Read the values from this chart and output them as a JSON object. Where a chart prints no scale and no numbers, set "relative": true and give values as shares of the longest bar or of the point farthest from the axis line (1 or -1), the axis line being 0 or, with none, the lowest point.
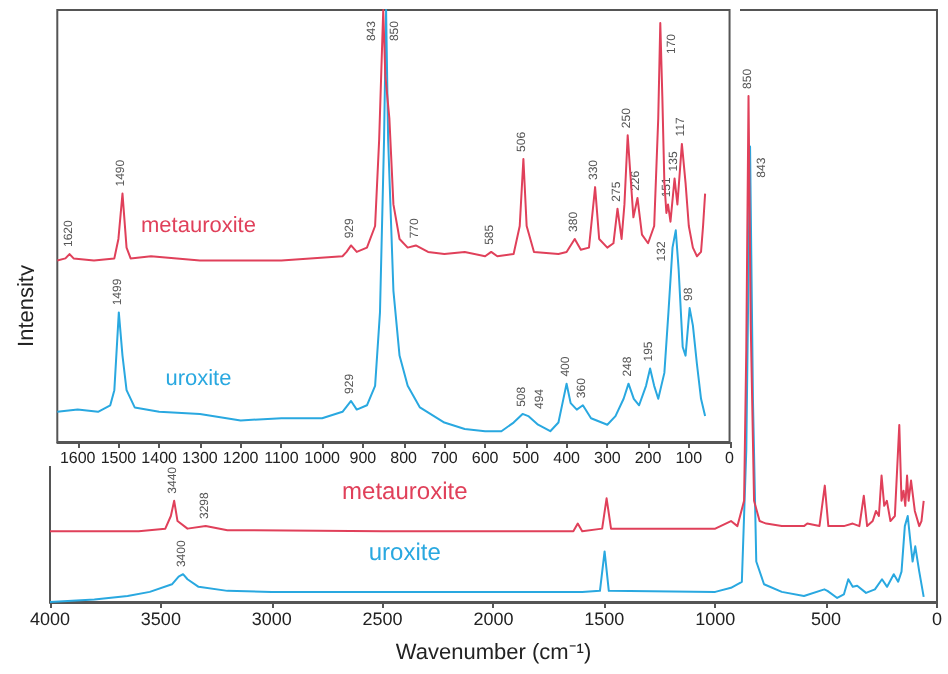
{
  "chart_data": [
    {
      "type": "line",
      "xlabel": "Wavenumber (cm⁻¹)",
      "ylabel": "Intensity",
      "relative": true,
      "tick_labels": "x",
      "xlim": [
        4000,
        0
      ],
      "xticks": [
        4000,
        3500,
        3000,
        2500,
        2000,
        1500,
        1000,
        500,
        0
      ],
      "series": [
        {
          "name": "metauroxite",
          "color": "#e0405a",
          "x": [
            4000,
            3600,
            3480,
            3455,
            3440,
            3425,
            3380,
            3298,
            3200,
            2500,
            2000,
            1640,
            1620,
            1600,
            1510,
            1490,
            1470,
            1000,
            929,
            900,
            870,
            860,
            850,
            840,
            825,
            800,
            770,
            700,
            600,
            585,
            530,
            506,
            490,
            420,
            380,
            350,
            330,
            315,
            290,
            275,
            262,
            250,
            238,
            226,
            210,
            190,
            170,
            160,
            151,
            143,
            135,
            128,
            117,
            100,
            80,
            70,
            60
          ],
          "values": [
            0.14,
            0.14,
            0.145,
            0.17,
            0.2,
            0.16,
            0.145,
            0.15,
            0.142,
            0.14,
            0.14,
            0.14,
            0.155,
            0.14,
            0.145,
            0.205,
            0.145,
            0.145,
            0.16,
            0.15,
            0.2,
            0.5,
            1.0,
            0.55,
            0.2,
            0.16,
            0.155,
            0.15,
            0.15,
            0.155,
            0.15,
            0.23,
            0.15,
            0.15,
            0.155,
            0.15,
            0.21,
            0.15,
            0.16,
            0.18,
            0.17,
            0.25,
            0.19,
            0.2,
            0.16,
            0.17,
            0.35,
            0.2,
            0.22,
            0.19,
            0.25,
            0.2,
            0.24,
            0.18,
            0.15,
            0.16,
            0.2
          ]
        },
        {
          "name": "uroxite",
          "color": "#29a8e0",
          "x": [
            4000,
            3800,
            3650,
            3550,
            3450,
            3420,
            3400,
            3380,
            3330,
            3200,
            3000,
            2500,
            2000,
            1600,
            1520,
            1499,
            1480,
            1000,
            929,
            880,
            860,
            843,
            830,
            815,
            780,
            700,
            600,
            508,
            494,
            450,
            420,
            400,
            380,
            360,
            320,
            280,
            248,
            225,
            195,
            175,
            160,
            145,
            132,
            120,
            110,
            98,
            80,
            60
          ],
          "values": [
            0.0,
            0.005,
            0.012,
            0.02,
            0.035,
            0.05,
            0.055,
            0.045,
            0.03,
            0.022,
            0.02,
            0.02,
            0.02,
            0.02,
            0.022,
            0.1,
            0.022,
            0.02,
            0.028,
            0.04,
            0.3,
            0.9,
            0.4,
            0.08,
            0.035,
            0.02,
            0.012,
            0.025,
            0.022,
            0.008,
            0.015,
            0.045,
            0.03,
            0.032,
            0.018,
            0.025,
            0.045,
            0.03,
            0.055,
            0.04,
            0.06,
            0.15,
            0.17,
            0.12,
            0.08,
            0.11,
            0.06,
            0.01
          ]
        }
      ],
      "annotations": [
        {
          "text": "3440",
          "x": 3440,
          "y": 0.2
        },
        {
          "text": "3298",
          "x": 3298,
          "y": 0.15
        },
        {
          "text": "850",
          "x": 850,
          "y": 1.0
        },
        {
          "text": "3400",
          "x": 3400,
          "y": 0.055
        },
        {
          "text": "843",
          "x": 843,
          "y": 0.9
        }
      ]
    },
    {
      "type": "line",
      "relative": true,
      "tick_labels": "x",
      "xlim": [
        1650,
        0
      ],
      "xticks": [
        1600,
        1500,
        1400,
        1300,
        1200,
        1100,
        1000,
        900,
        800,
        700,
        600,
        500,
        400,
        300,
        200,
        100,
        0
      ],
      "series": [
        {
          "name": "metauroxite",
          "color": "#e0405a",
          "x": [
            1650,
            1630,
            1620,
            1610,
            1560,
            1510,
            1500,
            1490,
            1480,
            1470,
            1420,
            1300,
            1100,
            950,
            940,
            929,
            915,
            890,
            870,
            860,
            855,
            850,
            845,
            835,
            825,
            810,
            790,
            770,
            740,
            700,
            650,
            600,
            585,
            570,
            530,
            515,
            506,
            498,
            480,
            420,
            400,
            380,
            365,
            345,
            330,
            320,
            300,
            285,
            275,
            265,
            258,
            250,
            242,
            236,
            226,
            215,
            200,
            185,
            175,
            170,
            165,
            160,
            155,
            151,
            145,
            135,
            128,
            117,
            108,
            100,
            90,
            80,
            70,
            65,
            60
          ],
          "values": [
            0.42,
            0.425,
            0.435,
            0.425,
            0.42,
            0.425,
            0.47,
            0.575,
            0.45,
            0.425,
            0.43,
            0.42,
            0.42,
            0.43,
            0.44,
            0.455,
            0.44,
            0.45,
            0.5,
            0.7,
            0.85,
            1.0,
            0.85,
            0.75,
            0.55,
            0.47,
            0.45,
            0.455,
            0.44,
            0.435,
            0.44,
            0.43,
            0.44,
            0.43,
            0.435,
            0.5,
            0.655,
            0.5,
            0.44,
            0.435,
            0.44,
            0.47,
            0.445,
            0.45,
            0.59,
            0.47,
            0.45,
            0.46,
            0.54,
            0.47,
            0.55,
            0.71,
            0.6,
            0.52,
            0.565,
            0.48,
            0.46,
            0.5,
            0.75,
            0.97,
            0.8,
            0.6,
            0.53,
            0.55,
            0.51,
            0.61,
            0.55,
            0.69,
            0.6,
            0.5,
            0.45,
            0.43,
            0.44,
            0.5,
            0.575
          ]
        },
        {
          "name": "uroxite",
          "color": "#29a8e0",
          "x": [
            1650,
            1600,
            1550,
            1520,
            1510,
            1499,
            1490,
            1480,
            1460,
            1400,
            1300,
            1200,
            1100,
            1000,
            950,
            929,
            915,
            890,
            870,
            858,
            848,
            843,
            838,
            825,
            810,
            790,
            760,
            700,
            650,
            600,
            560,
            530,
            508,
            494,
            470,
            440,
            420,
            410,
            400,
            390,
            375,
            360,
            340,
            300,
            280,
            260,
            248,
            235,
            222,
            205,
            195,
            185,
            175,
            160,
            150,
            140,
            132,
            125,
            115,
            108,
            98,
            90,
            80,
            70,
            60
          ],
          "values": [
            0.07,
            0.075,
            0.07,
            0.085,
            0.12,
            0.3,
            0.2,
            0.12,
            0.08,
            0.07,
            0.065,
            0.05,
            0.055,
            0.055,
            0.07,
            0.095,
            0.075,
            0.085,
            0.13,
            0.3,
            0.7,
            1.0,
            0.7,
            0.35,
            0.2,
            0.13,
            0.08,
            0.045,
            0.03,
            0.025,
            0.025,
            0.045,
            0.065,
            0.06,
            0.04,
            0.025,
            0.045,
            0.09,
            0.135,
            0.09,
            0.075,
            0.085,
            0.055,
            0.04,
            0.06,
            0.1,
            0.135,
            0.1,
            0.085,
            0.13,
            0.17,
            0.13,
            0.1,
            0.16,
            0.3,
            0.45,
            0.49,
            0.4,
            0.22,
            0.2,
            0.31,
            0.27,
            0.18,
            0.1,
            0.06
          ]
        }
      ],
      "annotations": [
        {
          "text": "1620",
          "x": 1620,
          "y": 0.435
        },
        {
          "text": "1490",
          "x": 1490,
          "y": 0.575
        },
        {
          "text": "929",
          "x": 929,
          "y": 0.455
        },
        {
          "text": "850",
          "x": 850,
          "y": 1.0
        },
        {
          "text": "770",
          "x": 770,
          "y": 0.455
        },
        {
          "text": "585",
          "x": 585,
          "y": 0.44
        },
        {
          "text": "506",
          "x": 506,
          "y": 0.655
        },
        {
          "text": "380",
          "x": 380,
          "y": 0.47
        },
        {
          "text": "330",
          "x": 330,
          "y": 0.59
        },
        {
          "text": "275",
          "x": 275,
          "y": 0.54
        },
        {
          "text": "250",
          "x": 250,
          "y": 0.71
        },
        {
          "text": "226",
          "x": 226,
          "y": 0.565
        },
        {
          "text": "170",
          "x": 170,
          "y": 0.97
        },
        {
          "text": "151",
          "x": 151,
          "y": 0.55
        },
        {
          "text": "135",
          "x": 135,
          "y": 0.61
        },
        {
          "text": "117",
          "x": 117,
          "y": 0.69
        },
        {
          "text": "1499",
          "x": 1499,
          "y": 0.3
        },
        {
          "text": "929",
          "x": 929,
          "y": 0.095
        },
        {
          "text": "843",
          "x": 843,
          "y": 1.0
        },
        {
          "text": "508",
          "x": 508,
          "y": 0.065
        },
        {
          "text": "494",
          "x": 494,
          "y": 0.06
        },
        {
          "text": "400",
          "x": 400,
          "y": 0.135
        },
        {
          "text": "360",
          "x": 360,
          "y": 0.085
        },
        {
          "text": "248",
          "x": 248,
          "y": 0.135
        },
        {
          "text": "195",
          "x": 195,
          "y": 0.17
        },
        {
          "text": "132",
          "x": 132,
          "y": 0.49
        },
        {
          "text": "98",
          "x": 98,
          "y": 0.31
        }
      ]
    }
  ]
}
